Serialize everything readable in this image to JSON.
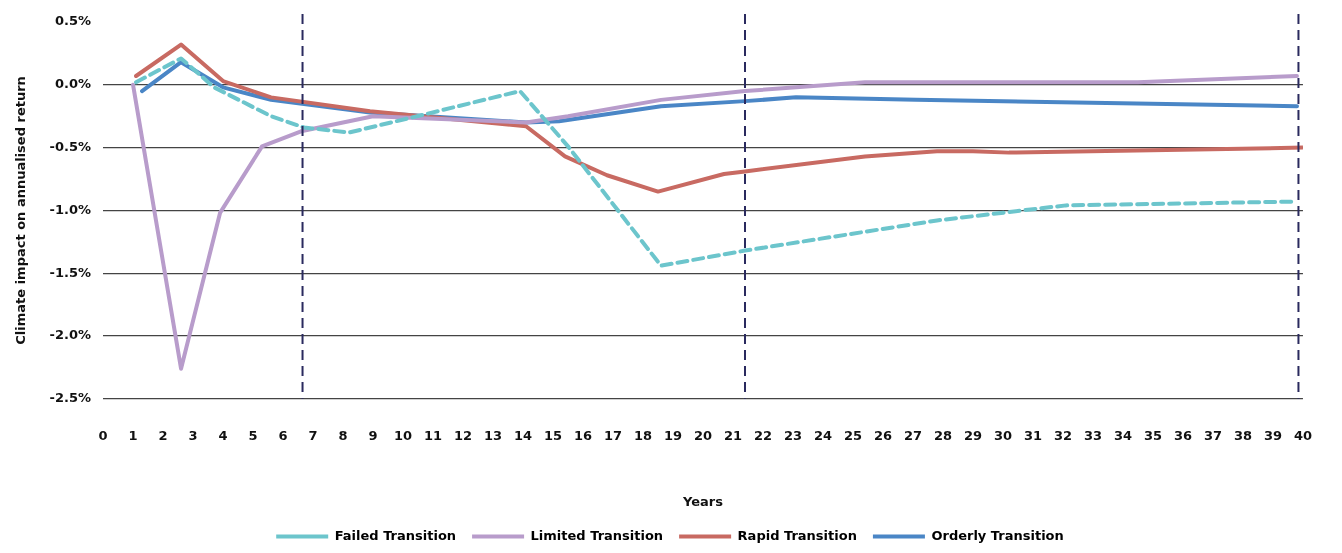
{
  "chart_data": {
    "type": "line",
    "xlabel": "Years",
    "ylabel": "Climate impact on annualised return",
    "xlim": [
      0,
      40
    ],
    "xticks": [
      0,
      1,
      2,
      3,
      4,
      5,
      6,
      7,
      8,
      9,
      10,
      11,
      12,
      13,
      14,
      15,
      16,
      17,
      18,
      19,
      20,
      21,
      22,
      23,
      24,
      25,
      26,
      27,
      28,
      29,
      30,
      31,
      32,
      33,
      34,
      35,
      36,
      37,
      38,
      39,
      40
    ],
    "ylim": [
      -2.5,
      0.5
    ],
    "yticks": [
      {
        "value": -2.5,
        "label": "-2.5%"
      },
      {
        "value": -2,
        "label": "-2.0%"
      },
      {
        "value": -1.5,
        "label": "-1.5%"
      },
      {
        "value": -1,
        "label": "-1.0%"
      },
      {
        "value": -0.5,
        "label": "-0.5%"
      },
      {
        "value": 0,
        "label": "0.0%"
      },
      {
        "value": 0.5,
        "label": "0.5%"
      }
    ],
    "grid": "y",
    "legend": "bottom",
    "marker": "none",
    "series": [
      {
        "name": "Failed Transition",
        "color": "#6cc5cc",
        "line_style": "dashed",
        "x": [
          1.1,
          2.6,
          3.7,
          5.6,
          6.7,
          8.2,
          10.3,
          13.9,
          15.5,
          18.6,
          21.4,
          27.8,
          32.1,
          39.7
        ],
        "values": [
          0.02,
          0.21,
          -0.02,
          -0.25,
          -0.34,
          -0.38,
          -0.26,
          -0.05,
          -0.49,
          -1.44,
          -1.32,
          -1.08,
          -0.96,
          -0.93
        ]
      },
      {
        "name": "Limited Transition",
        "color": "#b89ccb",
        "line_style": "solid",
        "x": [
          1.0,
          2.6,
          3.9,
          5.3,
          6.6,
          9.0,
          14.1,
          15.5,
          18.6,
          21.4,
          25.4,
          34.5,
          39.8
        ],
        "values": [
          0.0,
          -2.26,
          -1.02,
          -0.49,
          -0.37,
          -0.25,
          -0.3,
          -0.25,
          -0.12,
          -0.05,
          0.02,
          0.02,
          0.07
        ]
      },
      {
        "name": "Rapid Transition",
        "color": "#c86a62",
        "line_style": "solid",
        "x": [
          1.1,
          2.6,
          4.0,
          5.6,
          8.9,
          14.1,
          15.4,
          16.8,
          18.5,
          20.7,
          21.4,
          25.4,
          27.8,
          29.0,
          30.2,
          40.0
        ],
        "values": [
          0.07,
          0.32,
          0.03,
          -0.1,
          -0.21,
          -0.33,
          -0.57,
          -0.72,
          -0.85,
          -0.71,
          -0.69,
          -0.57,
          -0.53,
          -0.53,
          -0.54,
          -0.5
        ]
      },
      {
        "name": "Orderly Transition",
        "color": "#4a86c6",
        "line_style": "solid",
        "x": [
          1.3,
          2.6,
          4.0,
          5.6,
          8.9,
          14.1,
          15.2,
          18.6,
          21.4,
          23.1,
          27.1,
          39.8
        ],
        "values": [
          -0.05,
          0.18,
          -0.02,
          -0.12,
          -0.22,
          -0.3,
          -0.29,
          -0.17,
          -0.13,
          -0.1,
          -0.12,
          -0.17
        ]
      }
    ],
    "ref_lines": [
      {
        "axis": "x",
        "value": 6.65,
        "color": "#2a2a5e",
        "line_style": "dashed"
      },
      {
        "axis": "x",
        "value": 21.4,
        "color": "#2a2a5e",
        "line_style": "dashed"
      },
      {
        "axis": "x",
        "value": 39.85,
        "color": "#2a2a5e",
        "line_style": "dashed"
      }
    ]
  }
}
